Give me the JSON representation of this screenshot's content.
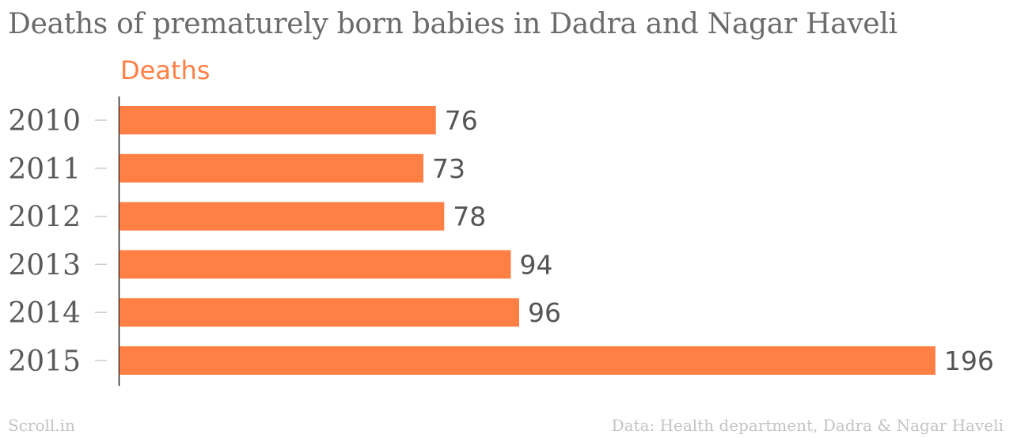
{
  "title": "Deaths of prematurely born babies in Dadra and Nagar Haveli",
  "legend_label": "Deaths",
  "footer": {
    "brand": "Scroll.in",
    "source": "Data: Health department, Dadra & Nagar Haveli"
  },
  "colors": {
    "bar": "#ff7f45",
    "title": "#6b6b6b",
    "legend": "#ff7f45",
    "footer": "#c4c4c4"
  },
  "chart_data": {
    "type": "bar",
    "orientation": "horizontal",
    "categories": [
      "2010",
      "2011",
      "2012",
      "2013",
      "2014",
      "2015"
    ],
    "series": [
      {
        "name": "Deaths",
        "values": [
          76,
          73,
          78,
          94,
          96,
          196
        ]
      }
    ],
    "title": "Deaths of prematurely born babies in Dadra and Nagar Haveli",
    "xlabel": "",
    "ylabel": "",
    "xlim": [
      0,
      196
    ],
    "grid": false,
    "data_labels": true,
    "legend_position": "top-left"
  }
}
